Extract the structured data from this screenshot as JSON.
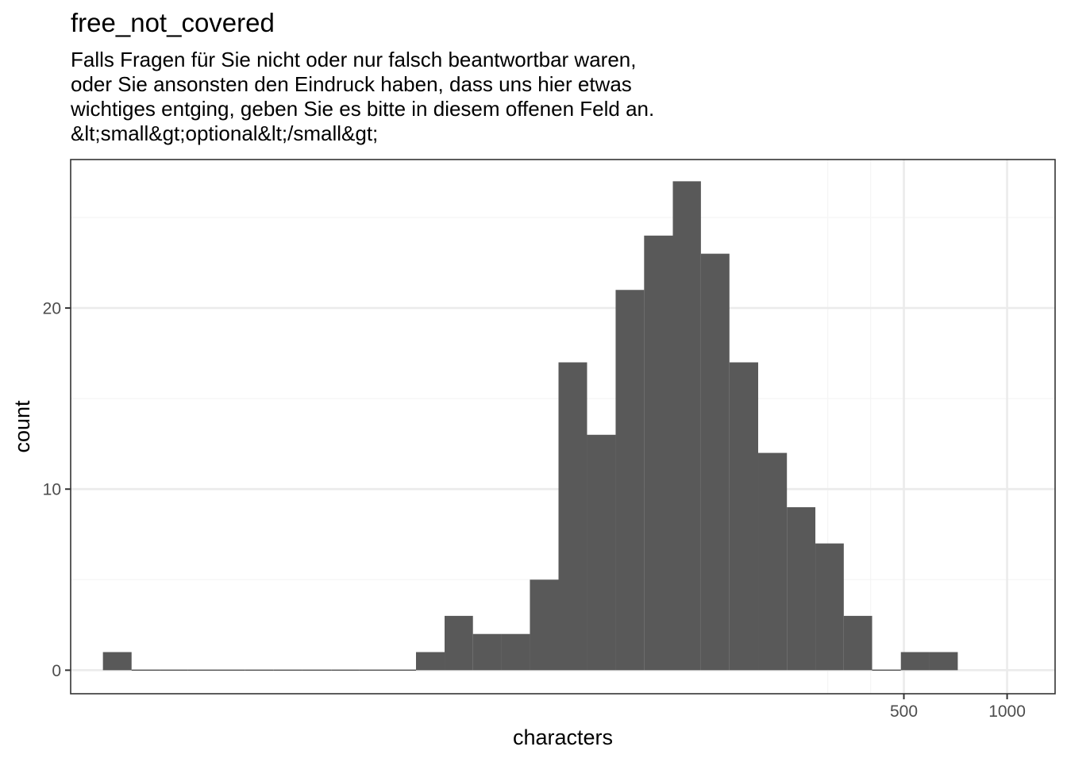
{
  "chart_data": {
    "type": "bar",
    "title": "free_not_covered",
    "subtitle_lines": [
      "Falls Fragen für Sie nicht oder nur falsch beantwortbar waren,",
      "oder Sie ansonsten den Eindruck haben, dass uns hier etwas",
      "wichtiges entging, geben Sie es bitte in diesem offenen Feld an.",
      "&lt;small&gt;optional&lt;/small&gt;"
    ],
    "xlabel": "characters",
    "ylabel": "count",
    "x_scale": "log10",
    "xlim": [
      1.86,
      1380
    ],
    "ylim": [
      -1.3,
      28.2
    ],
    "x_ticks": [
      500,
      1000
    ],
    "y_ticks": [
      0,
      10,
      20
    ],
    "x_minor_gridlines": [
      300,
      400
    ],
    "y_minor_gridlines": [
      5,
      15,
      25
    ],
    "bin_log_width": 0.0836,
    "bins": [
      {
        "x_start": 2.31,
        "x_end": 2.8,
        "count": 1
      },
      {
        "x_start": 2.8,
        "x_end": 3.38,
        "count": 0
      },
      {
        "x_start": 3.38,
        "x_end": 4.09,
        "count": 0
      },
      {
        "x_start": 4.09,
        "x_end": 4.96,
        "count": 0
      },
      {
        "x_start": 4.96,
        "x_end": 6.0,
        "count": 0
      },
      {
        "x_start": 6.0,
        "x_end": 7.27,
        "count": 0
      },
      {
        "x_start": 7.27,
        "x_end": 8.8,
        "count": 0
      },
      {
        "x_start": 8.8,
        "x_end": 10.7,
        "count": 0
      },
      {
        "x_start": 10.7,
        "x_end": 12.9,
        "count": 0
      },
      {
        "x_start": 12.9,
        "x_end": 15.6,
        "count": 0
      },
      {
        "x_start": 15.6,
        "x_end": 18.9,
        "count": 0
      },
      {
        "x_start": 18.9,
        "x_end": 22.9,
        "count": 1
      },
      {
        "x_start": 22.9,
        "x_end": 27.7,
        "count": 3
      },
      {
        "x_start": 27.7,
        "x_end": 33.6,
        "count": 2
      },
      {
        "x_start": 33.6,
        "x_end": 40.6,
        "count": 2
      },
      {
        "x_start": 40.6,
        "x_end": 49.2,
        "count": 5
      },
      {
        "x_start": 49.2,
        "x_end": 59.6,
        "count": 17
      },
      {
        "x_start": 59.6,
        "x_end": 72.2,
        "count": 13
      },
      {
        "x_start": 72.2,
        "x_end": 87.4,
        "count": 21
      },
      {
        "x_start": 87.4,
        "x_end": 106,
        "count": 24
      },
      {
        "x_start": 106,
        "x_end": 128,
        "count": 27
      },
      {
        "x_start": 128,
        "x_end": 155,
        "count": 23
      },
      {
        "x_start": 155,
        "x_end": 188,
        "count": 17
      },
      {
        "x_start": 188,
        "x_end": 228,
        "count": 12
      },
      {
        "x_start": 228,
        "x_end": 276,
        "count": 9
      },
      {
        "x_start": 276,
        "x_end": 334,
        "count": 7
      },
      {
        "x_start": 334,
        "x_end": 404,
        "count": 3
      },
      {
        "x_start": 404,
        "x_end": 490,
        "count": 0
      },
      {
        "x_start": 490,
        "x_end": 593,
        "count": 1
      },
      {
        "x_start": 593,
        "x_end": 718,
        "count": 1
      }
    ],
    "colors": {
      "bar": "#595959",
      "panel_border": "#333333",
      "grid_major": "#ebebeb",
      "grid_minor": "#f5f5f5",
      "tick_text": "#4d4d4d"
    }
  }
}
